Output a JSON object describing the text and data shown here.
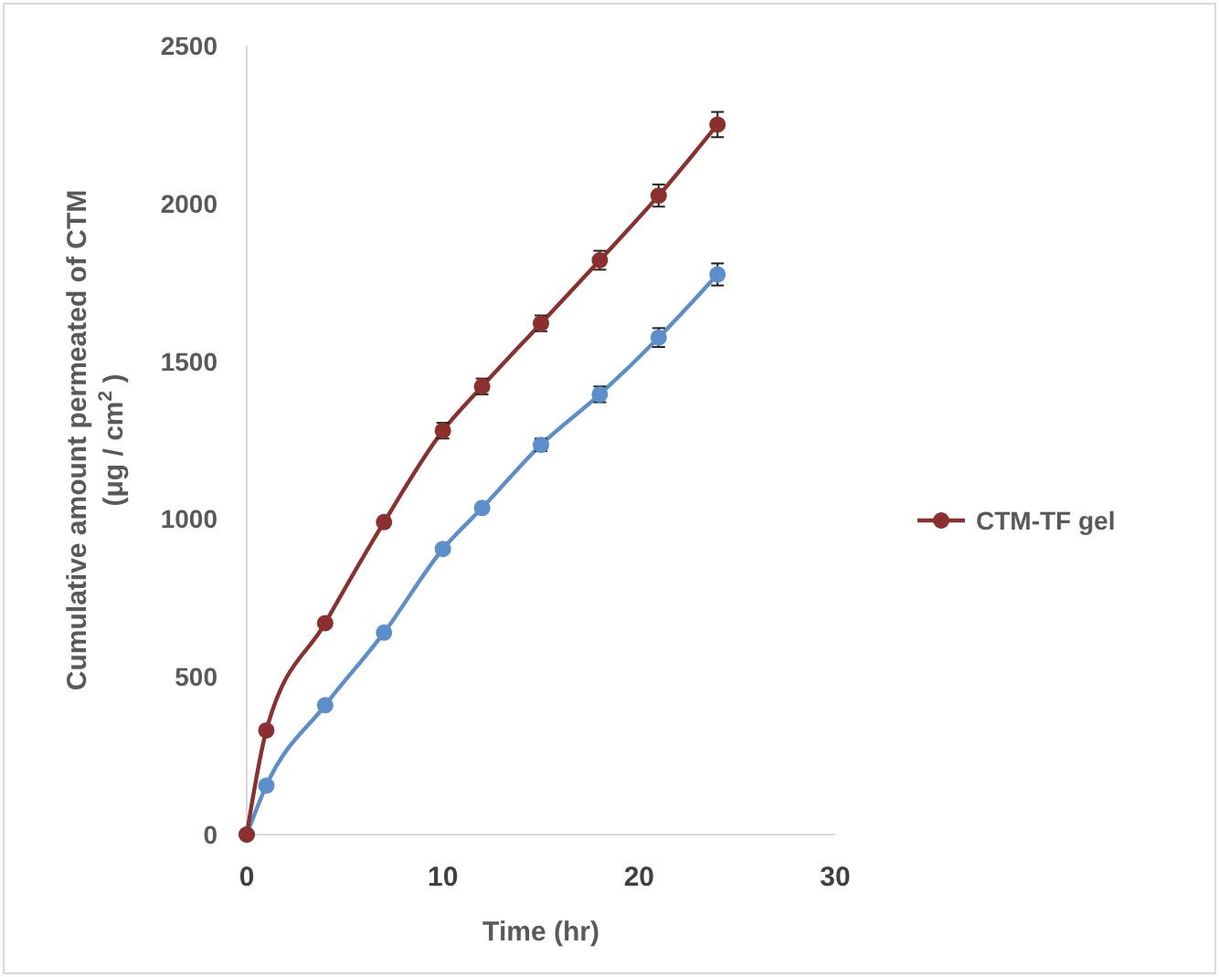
{
  "chart_data": {
    "type": "line",
    "xlabel": "Time (hr)",
    "ylabel": "Cumulative amount permeated of CTM\n(μg / cm$^{2}$ )",
    "x": [
      0,
      1,
      4,
      7,
      10,
      12,
      15,
      18,
      21,
      24
    ],
    "series": [
      {
        "color": "#5b8fcc",
        "values": [
          0,
          155,
          410,
          640,
          905,
          1035,
          1235,
          1395,
          1575,
          1775
        ],
        "errors": [
          null,
          null,
          null,
          null,
          null,
          null,
          20,
          25,
          30,
          35
        ]
      },
      {
        "name": "CTM-TF gel",
        "color": "#8b2f2f",
        "values": [
          0,
          330,
          670,
          990,
          1280,
          1420,
          1620,
          1820,
          2025,
          2250
        ],
        "errors": [
          null,
          null,
          null,
          null,
          25,
          25,
          25,
          30,
          35,
          40
        ]
      }
    ],
    "xlim": [
      0,
      30
    ],
    "xticks": [
      0,
      10,
      20,
      30
    ],
    "ylim": [
      0,
      2500
    ],
    "yticks": [
      0,
      500,
      1000,
      1500,
      2000,
      2500
    ],
    "legend": "right",
    "marker": "circle",
    "line_style": "solid"
  }
}
